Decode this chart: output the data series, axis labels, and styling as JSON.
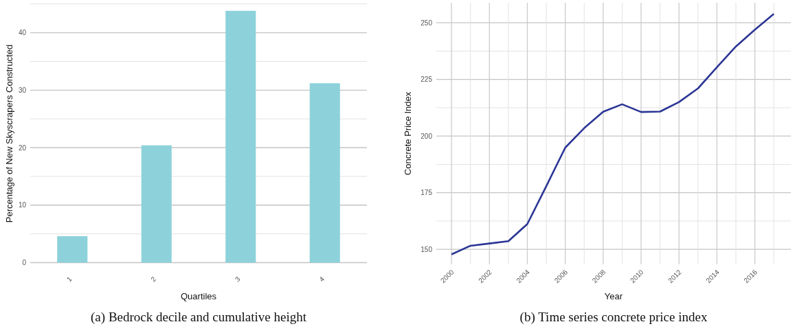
{
  "chart_data": [
    {
      "type": "bar",
      "categories": [
        "1",
        "2",
        "3",
        "4"
      ],
      "xlabel": "Quartiles",
      "ylabel": "Percentage of New Skyscrapers Constructed",
      "values": [
        4.6,
        20.4,
        43.8,
        31.2
      ],
      "color": "#8dd2da",
      "ylim": [
        -0.3,
        45.2
      ],
      "yticks": [
        0,
        {
          "value": 5,
          "label": null
        },
        10,
        {
          "value": 15,
          "label": null
        },
        20,
        {
          "value": 25,
          "label": null
        },
        30,
        {
          "value": 35,
          "label": null
        },
        40,
        {
          "value": 45,
          "label": null
        }
      ],
      "grid": "y",
      "annotations": [
        "(a) Bedrock decile and cumulative height"
      ]
    },
    {
      "type": "line",
      "xlabel": "Year",
      "ylabel": "Concrete Price Index",
      "x": [
        2000,
        2001,
        2002,
        2003,
        2004,
        2005,
        2006,
        2007,
        2008,
        2009,
        2010,
        2011,
        2012,
        2013,
        2014,
        2015,
        2016,
        2017
      ],
      "series": [
        {
          "color": "#2b3595",
          "values": [
            147.8,
            151.6,
            152.6,
            153.6,
            161.2,
            177.9,
            194.9,
            203.5,
            210.7,
            214.0,
            210.6,
            210.8,
            215.0,
            221.0,
            230.4,
            239.5,
            246.9,
            253.9
          ]
        }
      ],
      "xlim": [
        1999.2,
        2017.9
      ],
      "xticks": [
        2000,
        {
          "value": 2001,
          "label": null
        },
        2002,
        {
          "value": 2003,
          "label": null
        },
        2004,
        {
          "value": 2005,
          "label": null
        },
        2006,
        {
          "value": 2007,
          "label": null
        },
        2008,
        {
          "value": 2009,
          "label": null
        },
        2010,
        {
          "value": 2011,
          "label": null
        },
        2012,
        {
          "value": 2013,
          "label": null
        },
        2014,
        {
          "value": 2015,
          "label": null
        },
        2016,
        {
          "value": 2017,
          "label": null
        }
      ],
      "ylim": [
        143.4,
        258.8
      ],
      "yticks": [
        150,
        {
          "value": 162.5,
          "label": null
        },
        175,
        {
          "value": 187.5,
          "label": null
        },
        200,
        {
          "value": 212.5,
          "label": null
        },
        225,
        {
          "value": 237.5,
          "label": null
        },
        250
      ],
      "grid": true,
      "line_style": "solid",
      "annotations": [
        "(b) Time series concrete price index"
      ]
    }
  ]
}
